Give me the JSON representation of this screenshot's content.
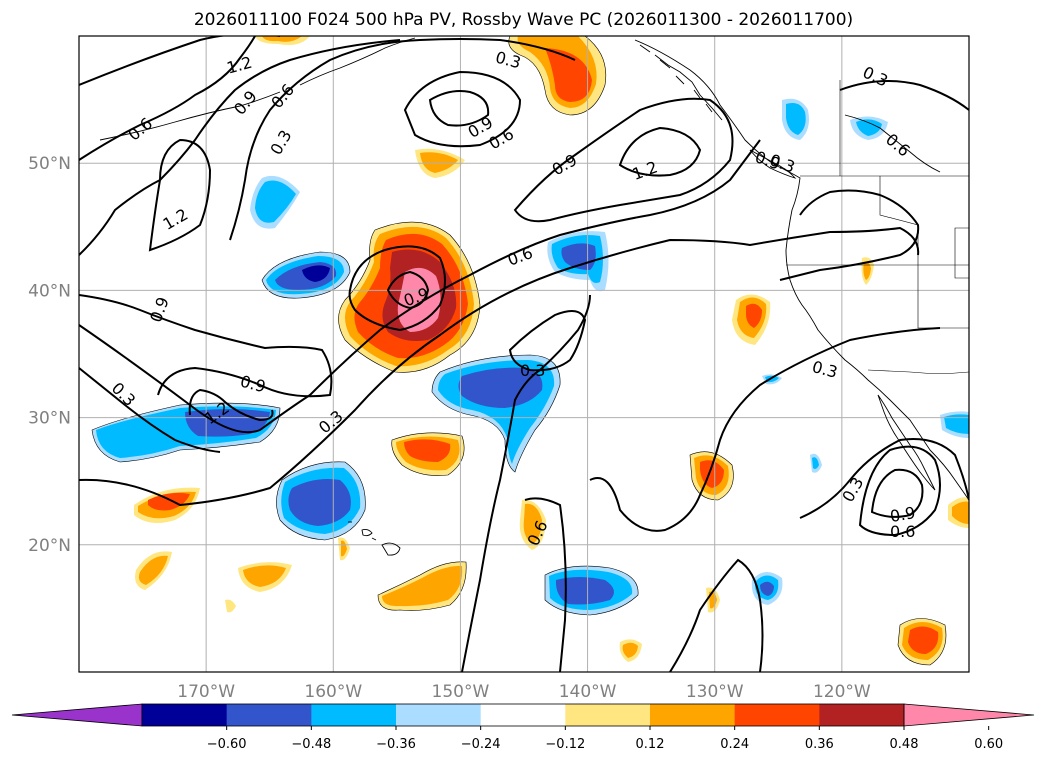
{
  "title": "2026011100 F024 500 hPa PV, Rossby Wave PC (2026011300 - 2026011700)",
  "map": {
    "lat_range": [
      10,
      60
    ],
    "lon_range": [
      -180,
      -110
    ],
    "lat_ticks": [
      {
        "value": 50,
        "label": "50°N"
      },
      {
        "value": 40,
        "label": "40°N"
      },
      {
        "value": 30,
        "label": "30°N"
      },
      {
        "value": 20,
        "label": "20°N"
      }
    ],
    "lon_ticks": [
      {
        "value": -170,
        "label": "170°W"
      },
      {
        "value": -160,
        "label": "160°W"
      },
      {
        "value": -150,
        "label": "150°W"
      },
      {
        "value": -140,
        "label": "140°W"
      },
      {
        "value": -130,
        "label": "130°W"
      },
      {
        "value": -120,
        "label": "120°W"
      }
    ],
    "contour_labels": [
      "1.2",
      "0.3",
      "0.6",
      "0.9",
      "0.6",
      "0.9",
      "0.3",
      "0.9",
      "0.6",
      "0.9",
      "1.2",
      "0.3",
      "0.6",
      "0.3",
      "1.2",
      "0.6",
      "0.9",
      "0.9",
      "0.3",
      "0.9",
      "1.2",
      "0.3",
      "0.3",
      "0.3",
      "0.6",
      "0.3",
      "0.9",
      "0.6"
    ]
  },
  "colorbar": {
    "ticks": [
      "−0.60",
      "−0.48",
      "−0.36",
      "−0.24",
      "−0.12",
      "0.12",
      "0.24",
      "0.36",
      "0.48",
      "0.60"
    ],
    "colors": [
      "#9933cc",
      "#000099",
      "#3355cc",
      "#00bbff",
      "#aaddff",
      "#ffffff",
      "#ffe680",
      "#ffa500",
      "#ff4500",
      "#b22222",
      "#ff88aa"
    ]
  },
  "shading_colors": {
    "neg_strong": "#000099",
    "neg_mid": "#3355cc",
    "neg_weak": "#00bbff",
    "neg_faint": "#aaddff",
    "pos_faint": "#ffe680",
    "pos_weak": "#ffa500",
    "pos_mid": "#ff4500",
    "pos_strong": "#b22222",
    "pos_max": "#ff88aa"
  }
}
